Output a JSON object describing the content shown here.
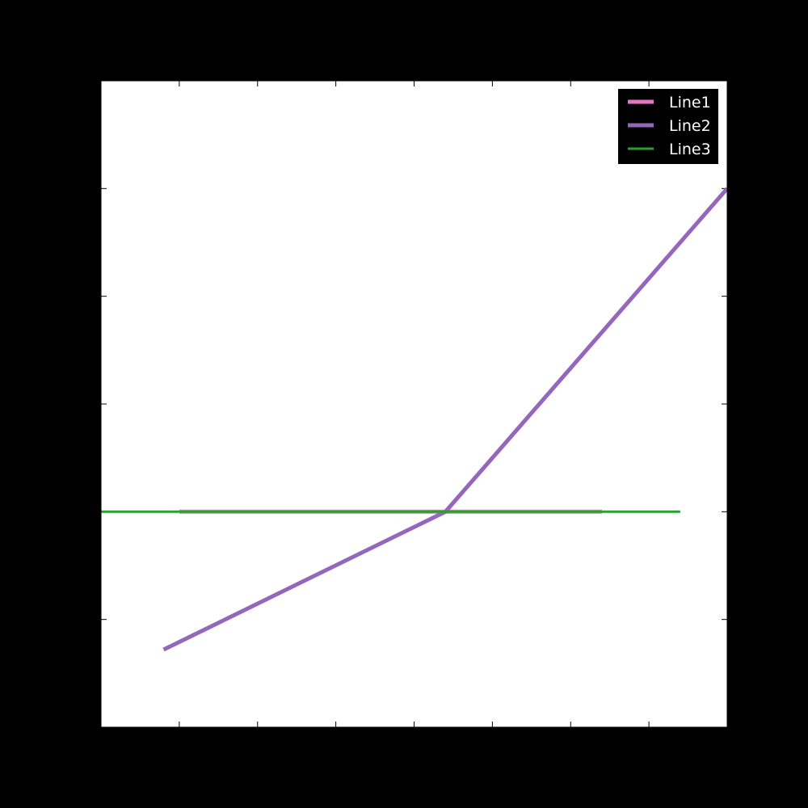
{
  "chart_data": {
    "type": "line",
    "title": "",
    "xlabel": "",
    "ylabel": "",
    "xlim": [
      -1,
      7
    ],
    "ylim": [
      -2,
      4
    ],
    "grid": false,
    "legend_position": "top-right",
    "background": "#000000",
    "plot_background": "#ffffff",
    "series": [
      {
        "name": "Line1",
        "color": "#e377c2",
        "x": [
          0,
          5.4
        ],
        "y": [
          0,
          0
        ]
      },
      {
        "name": "Line2",
        "color": "#9467bd",
        "x": [
          -0.2,
          3.4,
          7
        ],
        "y": [
          -1.28,
          0,
          3
        ]
      },
      {
        "name": "Line3",
        "color": "#2ca02c",
        "x": [
          -1,
          6.4
        ],
        "y": [
          0,
          0
        ]
      }
    ]
  }
}
